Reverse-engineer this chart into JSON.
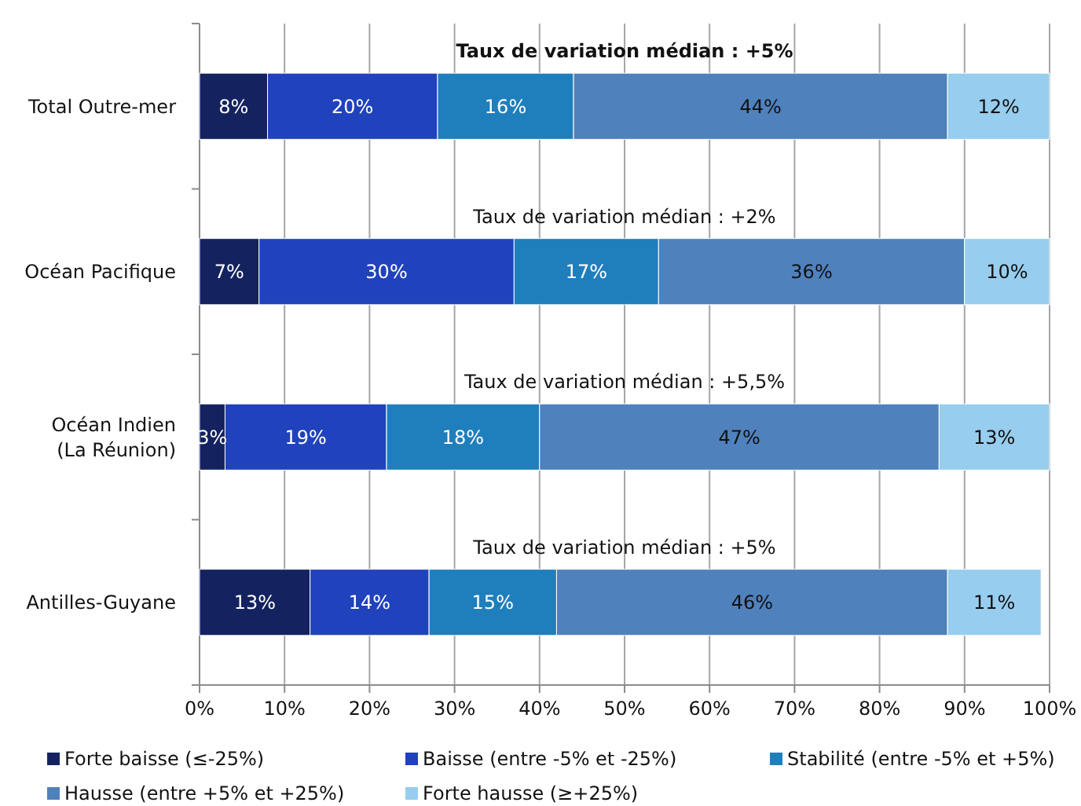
{
  "chart_data": {
    "type": "bar",
    "orientation": "horizontal",
    "stacked": true,
    "categories": [
      "Total Outre-mer",
      "Océan Pacifique",
      "Océan Indien (La Réunion)",
      "Antilles-Guyane"
    ],
    "series": [
      {
        "name": "Forte baisse (≤-25%)",
        "color": "#14225f",
        "values": [
          8,
          7,
          3,
          13
        ],
        "value_labels": [
          "8%",
          "7%",
          "3%",
          "13%"
        ]
      },
      {
        "name": "Baisse (entre -5% et -25%)",
        "color": "#2142bd",
        "values": [
          20,
          30,
          19,
          14
        ],
        "value_labels": [
          "20%",
          "30%",
          "19%",
          "14%"
        ]
      },
      {
        "name": "Stabilité (entre -5% et +5%)",
        "color": "#1f7fbd",
        "values": [
          16,
          17,
          18,
          15
        ],
        "value_labels": [
          "16%",
          "17%",
          "18%",
          "15%"
        ]
      },
      {
        "name": "Hausse (entre +5% et +25%)",
        "color": "#4f81bd",
        "values": [
          44,
          36,
          47,
          46
        ],
        "value_labels": [
          "44%",
          "36%",
          "47%",
          "46%"
        ]
      },
      {
        "name": "Forte hausse (≥+25%)",
        "color": "#97cdee",
        "values": [
          12,
          10,
          13,
          11
        ],
        "value_labels": [
          "12%",
          "10%",
          "13%",
          "11%"
        ]
      }
    ],
    "xlim": [
      0,
      100
    ],
    "xticks": [
      {
        "value": 0,
        "label": "0%"
      },
      {
        "value": 10,
        "label": "10%"
      },
      {
        "value": 20,
        "label": "20%"
      },
      {
        "value": 30,
        "label": "30%"
      },
      {
        "value": 40,
        "label": "40%"
      },
      {
        "value": 50,
        "label": "50%"
      },
      {
        "value": 60,
        "label": "60%"
      },
      {
        "value": 70,
        "label": "70%"
      },
      {
        "value": 80,
        "label": "80%"
      },
      {
        "value": 90,
        "label": "90%"
      },
      {
        "value": 100,
        "label": "100%"
      }
    ],
    "grid": "x",
    "legend": "bottom",
    "annotations": [
      "Taux de variation médian : +5%",
      "Taux de variation médian : +2%",
      "Taux de variation médian : +5,5%",
      "Taux de variation médian : +5%"
    ]
  }
}
